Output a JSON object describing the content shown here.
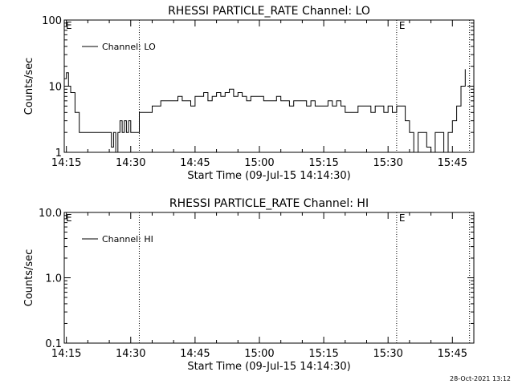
{
  "footer_timestamp": "28-Oct-2021 13:12",
  "chart_data": [
    {
      "type": "line",
      "title": "RHESSI PARTICLE_RATE Channel: LO",
      "xlabel": "Start Time (09-Jul-15 14:14:30)",
      "ylabel": "Counts/sec",
      "yscale": "log",
      "ylim": [
        1,
        100
      ],
      "ytick_labels": [
        "1",
        "10",
        "100"
      ],
      "xtick_labels": [
        "14:15",
        "14:30",
        "14:45",
        "15:00",
        "15:15",
        "15:30",
        "15:45"
      ],
      "legend": {
        "position": "top-left",
        "entries": [
          "Channel: LO"
        ]
      },
      "markers": [
        {
          "label": "",
          "time": "14:32"
        },
        {
          "label": "E",
          "time": "15:32"
        },
        {
          "label": "",
          "time": "15:49"
        }
      ],
      "corner_labels": [
        "E"
      ],
      "series": [
        {
          "name": "Channel: LO",
          "color": "#000000",
          "x": [
            "14:14:30",
            "14:15",
            "14:15:30",
            "14:16",
            "14:17",
            "14:18",
            "14:19",
            "14:20",
            "14:22",
            "14:24",
            "14:25",
            "14:25:30",
            "14:26",
            "14:26:30",
            "14:27",
            "14:27:30",
            "14:28",
            "14:28:30",
            "14:29",
            "14:29:30",
            "14:30",
            "14:31",
            "14:32",
            "14:33",
            "14:35",
            "14:37",
            "14:40",
            "14:41",
            "14:42",
            "14:43",
            "14:44",
            "14:45",
            "14:46",
            "14:47",
            "14:48",
            "14:49",
            "14:50",
            "14:51",
            "14:52",
            "14:53",
            "14:54",
            "14:55",
            "14:56",
            "14:57",
            "14:58",
            "14:59",
            "15:00",
            "15:01",
            "15:02",
            "15:03",
            "15:04",
            "15:05",
            "15:06",
            "15:07",
            "15:08",
            "15:09",
            "15:10",
            "15:11",
            "15:12",
            "15:13",
            "15:14",
            "15:15",
            "15:16",
            "15:17",
            "15:18",
            "15:19",
            "15:20",
            "15:21",
            "15:22",
            "15:23",
            "15:24",
            "15:25",
            "15:26",
            "15:27",
            "15:28",
            "15:29",
            "15:30",
            "15:31",
            "15:32",
            "15:33",
            "15:34",
            "15:35",
            "15:36",
            "15:37",
            "15:38",
            "15:39",
            "15:40",
            "15:41",
            "15:42",
            "15:43",
            "15:44",
            "15:45",
            "15:46",
            "15:47",
            "15:48"
          ],
          "y": [
            13,
            16,
            10,
            8,
            4,
            2,
            2,
            2,
            2,
            2,
            2,
            1.2,
            2,
            1,
            2,
            3,
            2,
            3,
            2,
            3,
            2,
            2,
            4,
            4,
            5,
            6,
            6,
            7,
            6,
            6,
            5,
            7,
            7,
            8,
            6,
            7,
            8,
            7,
            8,
            9,
            7,
            8,
            7,
            6,
            7,
            7,
            7,
            6,
            6,
            6,
            7,
            6,
            6,
            5,
            6,
            6,
            6,
            5,
            6,
            5,
            5,
            5,
            6,
            5,
            6,
            5,
            4,
            4,
            4,
            5,
            5,
            5,
            4,
            5,
            5,
            4,
            5,
            4,
            5,
            5,
            3,
            2,
            1,
            2,
            2,
            1.2,
            1,
            2,
            2,
            1,
            2,
            3,
            5,
            10,
            18
          ]
        }
      ]
    },
    {
      "type": "line",
      "title": "RHESSI PARTICLE_RATE Channel: HI",
      "xlabel": "Start Time (09-Jul-15 14:14:30)",
      "ylabel": "Counts/sec",
      "yscale": "log",
      "ylim": [
        0.1,
        10
      ],
      "ytick_labels": [
        "0.1",
        "1.0",
        "10.0"
      ],
      "xtick_labels": [
        "14:15",
        "14:30",
        "14:45",
        "15:00",
        "15:15",
        "15:30",
        "15:45"
      ],
      "legend": {
        "position": "top-left",
        "entries": [
          "Channel: HI"
        ]
      },
      "markers": [
        {
          "label": "",
          "time": "14:32"
        },
        {
          "label": "E",
          "time": "15:32"
        },
        {
          "label": "",
          "time": "15:49"
        }
      ],
      "corner_labels": [
        "E"
      ],
      "series": [
        {
          "name": "Channel: HI",
          "color": "#000000",
          "x": [],
          "y": []
        }
      ]
    }
  ]
}
